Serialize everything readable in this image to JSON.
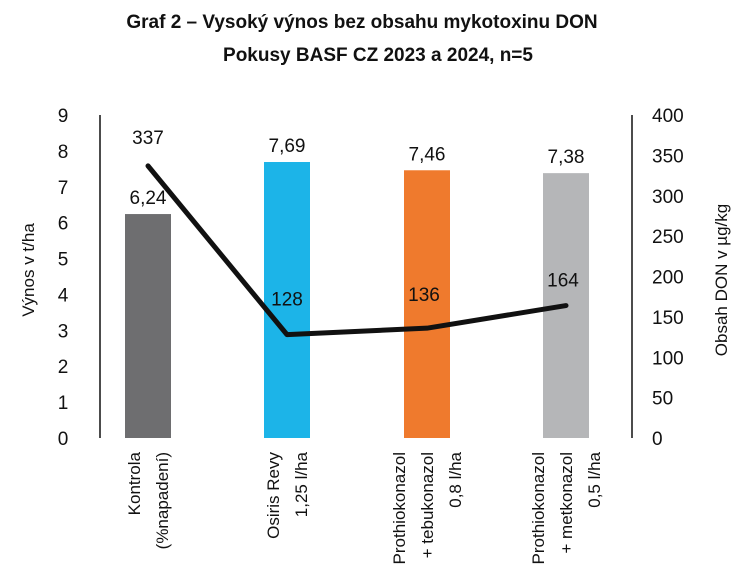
{
  "chart_data": {
    "type": "bar",
    "title": "Graf 2 – Vysoký výnos bez obsahu mykotoxinu DON",
    "subtitle": "Pokusy BASF CZ 2023 a 2024, n=5",
    "categories": [
      [
        "Kontrola",
        "(%napadení)"
      ],
      [
        "Osiris Revy",
        "1,25 l/ha"
      ],
      [
        "Prothiokonazol",
        "+ tebukonazol",
        "0,8 l/ha"
      ],
      [
        "Prothiokonazol",
        "+ metkonazol",
        "0,5 l/ha"
      ]
    ],
    "series": [
      {
        "type": "bar",
        "axis": "left",
        "values": [
          6.24,
          7.69,
          7.46,
          7.38
        ],
        "labels": [
          "6,24",
          "7,69",
          "7,46",
          "7,38"
        ],
        "colors": [
          "#6e6e70",
          "#1cb4e8",
          "#ef7a2d",
          "#b5b6b8"
        ]
      },
      {
        "type": "line",
        "axis": "right",
        "values": [
          337,
          128,
          136,
          164
        ],
        "labels": [
          "337",
          "128",
          "136",
          "164"
        ],
        "color": "#111111"
      }
    ],
    "y_left": {
      "label": "Výnos v t/ha",
      "range": [
        0,
        9
      ],
      "ticks": [
        "0",
        "1",
        "2",
        "3",
        "4",
        "5",
        "6",
        "7",
        "8",
        "9"
      ]
    },
    "y_right": {
      "label": "Obsah DON v  µg/kg",
      "range": [
        0,
        400
      ],
      "ticks": [
        "0",
        "50",
        "100",
        "150",
        "200",
        "250",
        "300",
        "350",
        "400"
      ]
    },
    "grid": false,
    "legend": "none"
  }
}
